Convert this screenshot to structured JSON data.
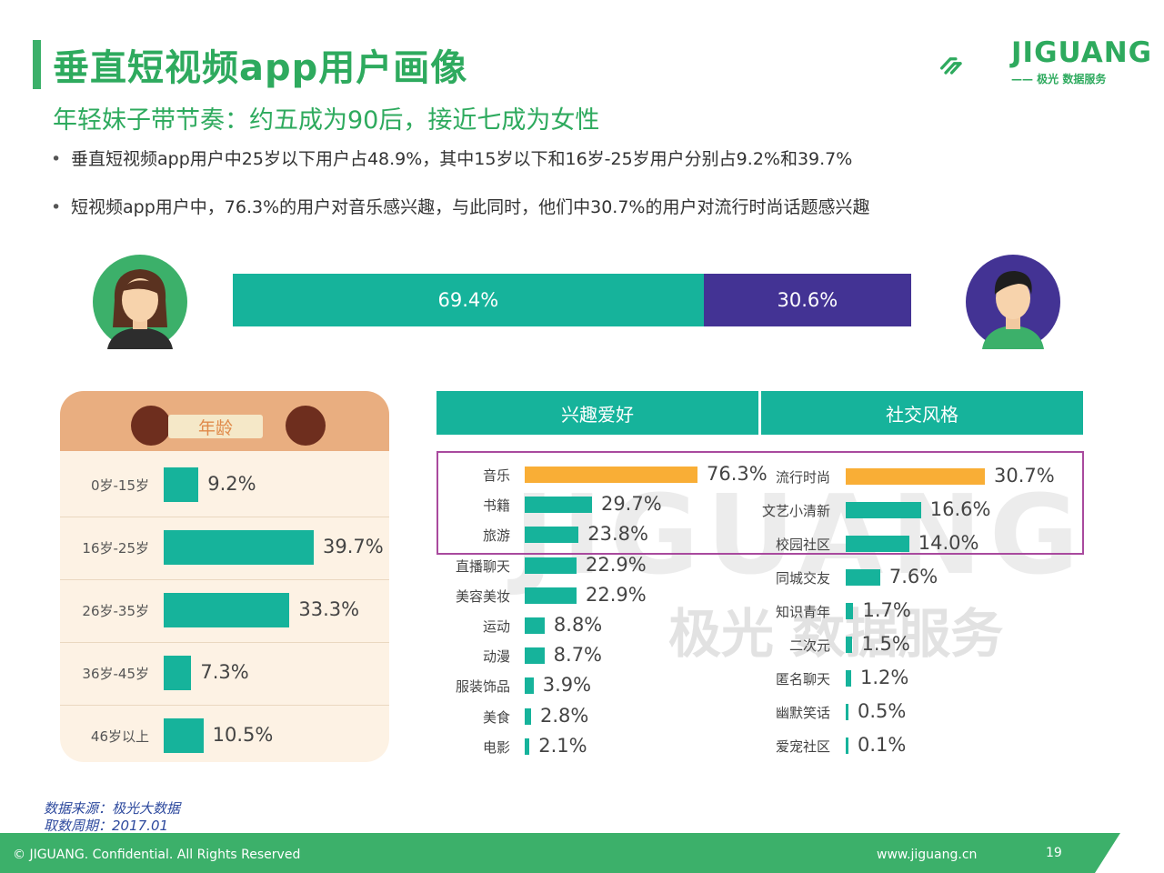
{
  "header": {
    "title": "垂直短视频app用户画像",
    "subtitle": "年轻妹子带节奏：约五成为90后，接近七成为女性",
    "bullets": [
      "垂直短视频app用户中25岁以下用户占48.9%，其中15岁以下和16岁-25岁用户分别占9.2%和39.7%",
      "短视频app用户中，76.3%的用户对音乐感兴趣，与此同时，他们中30.7%的用户对流行时尚话题感兴趣"
    ]
  },
  "logo": {
    "name": "JIGUANG",
    "tagline": "—— 极光 数据服务"
  },
  "watermark": {
    "brand": "JIGUANG",
    "cn": "极光 数据服务"
  },
  "colors": {
    "green": "#16b39b",
    "purple": "#433394",
    "orange": "#f9ae36",
    "brand": "#2eaa5e",
    "highlight": "#a94a9e"
  },
  "chart_data": [
    {
      "type": "bar",
      "orientation": "horizontal-stacked",
      "categories": [
        "女",
        "男"
      ],
      "values": [
        69.4,
        30.6
      ],
      "labels": [
        "69.4%",
        "30.6%"
      ]
    },
    {
      "type": "bar",
      "orientation": "horizontal",
      "title": "年龄",
      "categories": [
        "0岁-15岁",
        "16岁-25岁",
        "26岁-35岁",
        "36岁-45岁",
        "46岁以上"
      ],
      "values": [
        9.2,
        39.7,
        33.3,
        7.3,
        10.5
      ],
      "labels": [
        "9.2%",
        "39.7%",
        "33.3%",
        "7.3%",
        "10.5%"
      ]
    },
    {
      "type": "bar",
      "orientation": "horizontal",
      "title": "兴趣爱好",
      "categories": [
        "音乐",
        "书籍",
        "旅游",
        "直播聊天",
        "美容美妆",
        "运动",
        "动漫",
        "服装饰品",
        "美食",
        "电影"
      ],
      "values": [
        76.3,
        29.7,
        23.8,
        22.9,
        22.9,
        8.8,
        8.7,
        3.9,
        2.8,
        2.1
      ],
      "labels": [
        "76.3%",
        "29.7%",
        "23.8%",
        "22.9%",
        "22.9%",
        "8.8%",
        "8.7%",
        "3.9%",
        "2.8%",
        "2.1%"
      ]
    },
    {
      "type": "bar",
      "orientation": "horizontal",
      "title": "社交风格",
      "categories": [
        "流行时尚",
        "文艺小清新",
        "校园社区",
        "同城交友",
        "知识青年",
        "二次元",
        "匿名聊天",
        "幽默笑话",
        "爱宠社区"
      ],
      "values": [
        30.7,
        16.6,
        14.0,
        7.6,
        1.7,
        1.5,
        1.2,
        0.5,
        0.1
      ],
      "labels": [
        "30.7%",
        "16.6%",
        "14.0%",
        "7.6%",
        "1.7%",
        "1.5%",
        "1.2%",
        "0.5%",
        "0.1%"
      ]
    }
  ],
  "source": {
    "line1": "数据来源：极光大数据",
    "line2": "取数周期：2017.01"
  },
  "footer": {
    "copyright": "© JIGUANG. Confidential. All Rights Reserved",
    "url": "www.jiguang.cn",
    "page": "19"
  }
}
